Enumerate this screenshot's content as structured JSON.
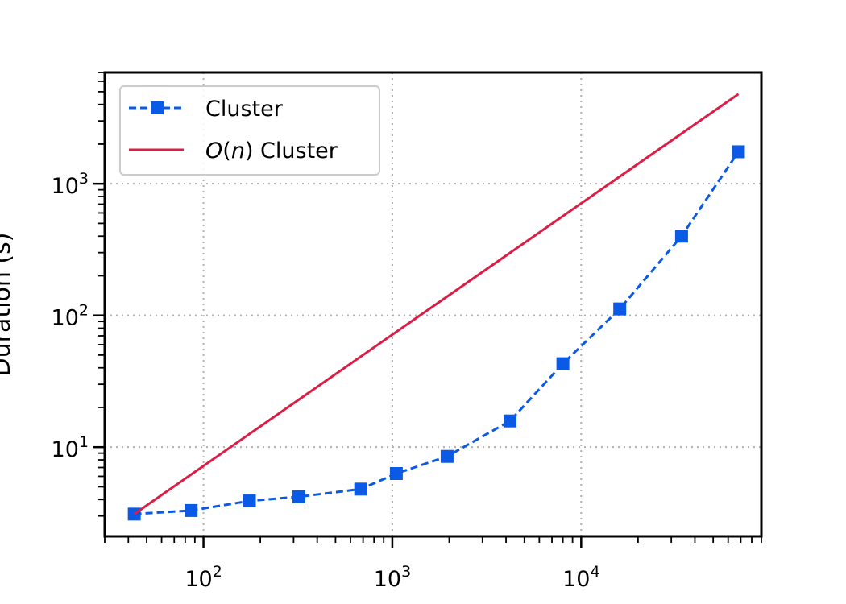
{
  "chart_data": {
    "type": "line",
    "xscale": "log",
    "yscale": "log",
    "xlim": [
      30,
      90000
    ],
    "ylim": [
      2.1,
      7000
    ],
    "xlabel": "",
    "ylabel": "Duration (s)",
    "x_ticks": [
      {
        "value": 100,
        "label": "10",
        "exp": "2"
      },
      {
        "value": 1000,
        "label": "10",
        "exp": "3"
      },
      {
        "value": 10000,
        "label": "10",
        "exp": "4"
      }
    ],
    "y_ticks": [
      {
        "value": 10,
        "label": "10",
        "exp": "1"
      },
      {
        "value": 100,
        "label": "10",
        "exp": "2"
      },
      {
        "value": 1000,
        "label": "10",
        "exp": "3"
      }
    ],
    "grid": true,
    "legend_position": "top-left",
    "series": [
      {
        "name": "Cluster",
        "color": "#0a5ae6",
        "style": "dashed",
        "marker": "square",
        "x": [
          43,
          86,
          175,
          320,
          680,
          1050,
          1950,
          4200,
          8000,
          16000,
          34000,
          68000
        ],
        "y": [
          3.1,
          3.3,
          3.9,
          4.2,
          4.8,
          6.3,
          8.5,
          15.8,
          43,
          112,
          400,
          1750
        ]
      },
      {
        "name": "O(n) Cluster",
        "legend_parts": [
          "O",
          "(",
          "n",
          ") Cluster"
        ],
        "color": "#dc1e46",
        "style": "solid",
        "marker": "none",
        "x": [
          43,
          68000
        ],
        "y": [
          3.1,
          4800
        ]
      }
    ]
  }
}
